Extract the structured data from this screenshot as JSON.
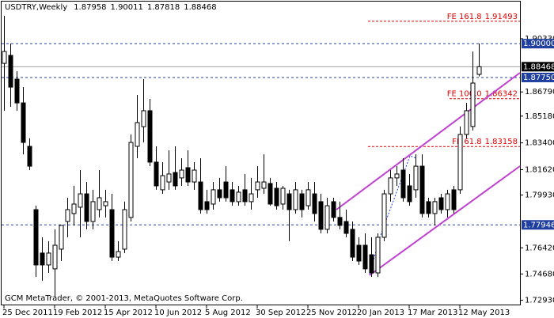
{
  "chart_data": {
    "type": "candlestick",
    "title": "USDTRY,Weekly",
    "header_values": [
      1.87958,
      1.90011,
      1.87818,
      1.88468
    ],
    "footer": "GCM MetaTrader, © 2001-2013, MetaQuotes Software Corp.",
    "categories": [
      "25 Dec 2011",
      null,
      null,
      null,
      null,
      null,
      null,
      null,
      "19 Feb 2012",
      null,
      null,
      null,
      null,
      null,
      null,
      null,
      "15 Apr 2012",
      null,
      null,
      null,
      null,
      null,
      null,
      null,
      "10 Jun 2012",
      null,
      null,
      null,
      null,
      null,
      null,
      null,
      "5 Aug 2012",
      null,
      null,
      null,
      null,
      null,
      null,
      null,
      "30 Sep 2012",
      null,
      null,
      null,
      null,
      null,
      null,
      null,
      "25 Nov 2012",
      null,
      null,
      null,
      null,
      null,
      null,
      null,
      "20 Jan 2013",
      null,
      null,
      null,
      null,
      null,
      null,
      null,
      "17 Mar 2013",
      null,
      null,
      null,
      null,
      null,
      null,
      null,
      "12 May 2013",
      null,
      null,
      null
    ],
    "open": [
      1.8869,
      1.8922,
      1.8764,
      1.8606,
      1.8317,
      1.7896,
      1.7607,
      1.7528,
      1.7502,
      1.7633,
      1.7817,
      1.787,
      1.7912,
      1.8001,
      1.7817,
      1.7896,
      1.7922,
      1.7896,
      1.758,
      1.7633,
      1.7844,
      1.8317,
      1.8448,
      1.8554,
      1.8212,
      1.8028,
      1.808,
      1.8143,
      1.8107,
      1.8175,
      1.808,
      1.808,
      1.7949,
      1.7933,
      1.8028,
      1.808,
      1.8028,
      1.7949,
      1.8028,
      1.7949,
      1.8028,
      1.8038,
      1.807,
      1.8038,
      1.7933,
      1.8001,
      1.7896,
      1.8001,
      1.7922,
      1.8001,
      1.7949,
      1.7765,
      1.7949,
      1.7844,
      1.7817,
      1.7765,
      1.7659,
      1.7659,
      1.7596,
      1.7475,
      1.7712,
      1.8001,
      1.8107,
      1.8159,
      1.8054,
      1.8028,
      1.8185,
      1.7949,
      1.787,
      1.7975,
      1.7896,
      1.8028,
      1.8028,
      1.8396,
      1.8449,
      1.87958
    ],
    "high": [
      1.9185,
      1.9001,
      1.8817,
      1.8711,
      1.837,
      1.7922,
      1.7712,
      1.7686,
      1.7765,
      1.7791,
      1.7975,
      1.8054,
      1.8159,
      1.808,
      1.8028,
      1.8159,
      1.8028,
      1.8001,
      1.7686,
      1.7949,
      1.8396,
      1.8659,
      1.8764,
      1.8633,
      1.8317,
      1.8212,
      1.8291,
      1.8317,
      1.8238,
      1.8291,
      1.8212,
      1.8238,
      1.8028,
      1.808,
      1.8107,
      1.8185,
      1.808,
      1.8054,
      1.8133,
      1.8107,
      1.8185,
      1.8264,
      1.8107,
      1.808,
      1.8054,
      1.8028,
      1.808,
      1.8028,
      1.808,
      1.808,
      1.8001,
      1.7975,
      1.7975,
      1.7949,
      1.7896,
      1.7817,
      1.7712,
      1.7738,
      1.7712,
      1.7738,
      1.8028,
      1.8159,
      1.8185,
      1.8238,
      1.8133,
      1.8264,
      1.8264,
      1.7975,
      1.7975,
      1.8001,
      1.8028,
      1.8054,
      1.8449,
      1.8606,
      1.8948,
      1.90011
    ],
    "low": [
      1.8554,
      1.858,
      1.8554,
      1.8264,
      1.8159,
      1.7449,
      1.7423,
      1.7475,
      1.7318,
      1.7554,
      1.7712,
      1.7791,
      1.7712,
      1.7765,
      1.7765,
      1.7844,
      1.7844,
      1.7554,
      1.7554,
      1.7607,
      1.7817,
      1.8238,
      1.8343,
      1.8185,
      1.8028,
      1.8001,
      1.8028,
      1.8028,
      1.8054,
      1.8054,
      1.8028,
      1.787,
      1.787,
      1.7896,
      1.7949,
      1.7949,
      1.7922,
      1.7922,
      1.7922,
      1.7896,
      1.7975,
      1.8001,
      1.7922,
      1.7896,
      1.7896,
      1.7686,
      1.787,
      1.7844,
      1.7896,
      1.7817,
      1.7738,
      1.7738,
      1.7817,
      1.7765,
      1.7712,
      1.7554,
      1.7528,
      1.7475,
      1.7449,
      1.7449,
      1.7686,
      1.7949,
      1.8054,
      1.7949,
      1.7922,
      1.7975,
      1.7844,
      1.7844,
      1.7791,
      1.787,
      1.7844,
      1.787,
      1.8001,
      1.837,
      1.8422,
      1.87818
    ],
    "close": [
      1.8948,
      1.8711,
      1.8606,
      1.8343,
      1.8185,
      1.7528,
      1.7528,
      1.7607,
      1.7659,
      1.7791,
      1.7896,
      1.7933,
      1.8001,
      1.7817,
      1.7949,
      1.7975,
      1.7949,
      1.758,
      1.7617,
      1.7896,
      1.8343,
      1.8475,
      1.8554,
      1.8212,
      1.8054,
      1.8122,
      1.8133,
      1.8054,
      1.8159,
      1.808,
      1.8159,
      1.7896,
      1.7896,
      1.8028,
      1.7975,
      1.7975,
      1.7949,
      1.8012,
      1.7949,
      1.8001,
      1.808,
      1.808,
      1.7933,
      1.7922,
      1.8038,
      1.7896,
      1.8028,
      1.7896,
      1.8028,
      1.787,
      1.7765,
      1.7922,
      1.7844,
      1.7791,
      1.7738,
      1.758,
      1.7554,
      1.7502,
      1.7475,
      1.7712,
      1.8001,
      1.8107,
      1.8133,
      1.7975,
      1.7949,
      1.8185,
      1.787,
      1.787,
      1.7949,
      1.7896,
      1.8001,
      1.7896,
      1.8396,
      1.8554,
      1.8738,
      1.88468
    ],
    "up_color": "#ffffff",
    "down_color": "#000000",
    "ylim": [
      1.7254,
      1.928
    ],
    "yticks": [
      {
        "value": 1.9033,
        "label": "1.90330"
      },
      {
        "value": 1.8679,
        "label": "1.86790"
      },
      {
        "value": 1.8518,
        "label": "1.85180"
      },
      {
        "value": 1.834,
        "label": "1.83400"
      },
      {
        "value": 1.8162,
        "label": "1.81620"
      },
      {
        "value": 1.7993,
        "label": "1.79930"
      },
      {
        "value": 1.7642,
        "label": "1.76420"
      },
      {
        "value": 1.7468,
        "label": "1.74680"
      },
      {
        "value": 1.7293,
        "label": "1.72930"
      }
    ],
    "price_lines": [
      {
        "value": 1.9,
        "label": "1.90000"
      },
      {
        "value": 1.8775,
        "label": "1.87750"
      },
      1.77946
    ],
    "price_line_color": "#2040a0",
    "last_price": 1.88468,
    "fe_levels": [
      {
        "name": "FE 161.8",
        "value": 1.91493
      },
      {
        "name": "FE 100.0",
        "value": 1.86342
      },
      {
        "name": "FE 61.8",
        "value": 1.83158
      }
    ],
    "fe_color": "#e00000"
  }
}
